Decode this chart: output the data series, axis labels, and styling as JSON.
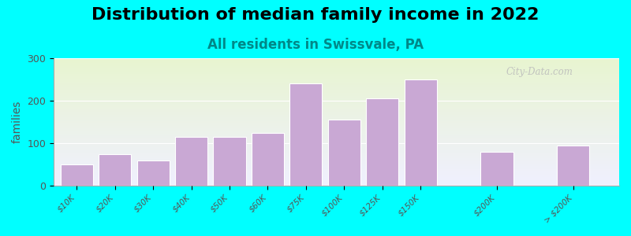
{
  "title": "Distribution of median family income in 2022",
  "subtitle": "All residents in Swissvale, PA",
  "ylabel": "families",
  "watermark": "City-Data.com",
  "background_outer": "#00FFFF",
  "background_inner_top": "#e8f5d0",
  "background_inner_bottom": "#f0f0ff",
  "bar_color": "#c9a8d4",
  "bar_edge_color": "#ffffff",
  "bar_positions": [
    0,
    1,
    2,
    3,
    4,
    5,
    6,
    7,
    8,
    9,
    11,
    13
  ],
  "bar_heights": [
    50,
    75,
    60,
    115,
    115,
    125,
    240,
    155,
    205,
    250,
    80,
    95
  ],
  "tick_labels": [
    "$10K",
    "$20K",
    "$30K",
    "$40K",
    "$50K",
    "$60K",
    "$75K",
    "$100K",
    "$125K",
    "$150K",
    "$200K",
    "> $200K"
  ],
  "xlim": [
    -0.6,
    14.2
  ],
  "ylim": [
    0,
    300
  ],
  "yticks": [
    0,
    100,
    200,
    300
  ],
  "title_fontsize": 16,
  "subtitle_fontsize": 12,
  "subtitle_color": "#008888"
}
